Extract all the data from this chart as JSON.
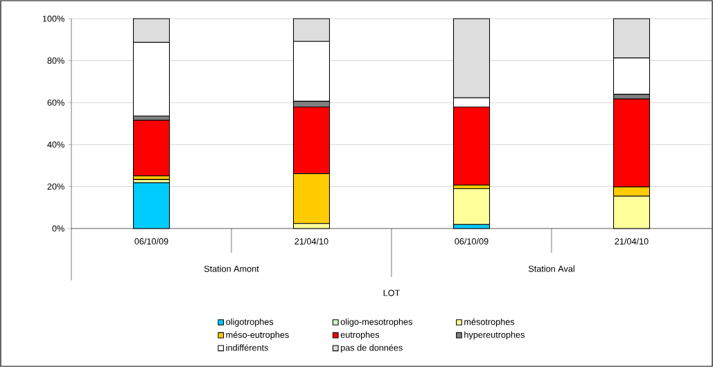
{
  "chart_data": {
    "type": "bar",
    "stacked": true,
    "categories": [
      "06/10/09",
      "21/04/10",
      "06/10/09",
      "21/04/10"
    ],
    "series": [
      {
        "name": "oligotrophes",
        "color": "#00ccff",
        "values": [
          21.8,
          0,
          1.9,
          0
        ]
      },
      {
        "name": "oligo-mesotrophes",
        "color": "#ccffcc",
        "values": [
          0,
          0,
          0,
          0
        ]
      },
      {
        "name": "mésotrophes",
        "color": "#ffff99",
        "values": [
          1.5,
          2.4,
          17.1,
          15.4
        ]
      },
      {
        "name": "méso-eutrophes",
        "color": "#ffcc00",
        "values": [
          1.8,
          23.8,
          1.7,
          4.4
        ]
      },
      {
        "name": "eutrophes",
        "color": "#ff0000",
        "values": [
          26.5,
          31.7,
          37.2,
          41.9
        ]
      },
      {
        "name": "hypereutrophes",
        "color": "#808080",
        "values": [
          2.0,
          2.7,
          0,
          2.2
        ]
      },
      {
        "name": "indifférents",
        "color": "#ffffff",
        "values": [
          35.1,
          28.6,
          4.4,
          17.4
        ]
      },
      {
        "name": "pas de données",
        "color": "#dddddd",
        "values": [
          11.3,
          10.8,
          37.7,
          18.7
        ]
      }
    ],
    "ylim": [
      0,
      100
    ],
    "yticks": [
      {
        "value": 0,
        "label": "0%"
      },
      {
        "value": 20,
        "label": "20%"
      },
      {
        "value": 40,
        "label": "40%"
      },
      {
        "value": 60,
        "label": "60%"
      },
      {
        "value": 80,
        "label": "80%"
      },
      {
        "value": 100,
        "label": "100%"
      }
    ],
    "grid": "y",
    "legend": "bottom",
    "annotations": [
      "Station Amont",
      "Station Aval",
      "LOT"
    ]
  }
}
